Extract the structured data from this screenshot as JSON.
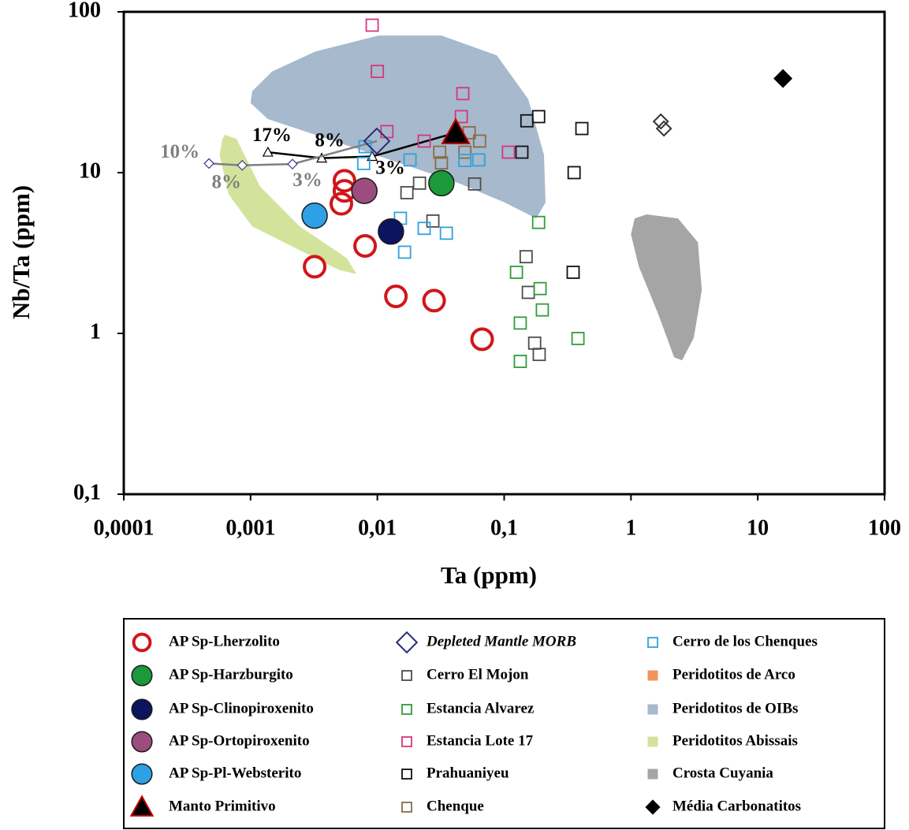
{
  "chart_data": {
    "type": "scatter",
    "xlabel": "Ta (ppm)",
    "ylabel": "Nb/Ta (ppm)",
    "xscale": "log",
    "yscale": "log",
    "xlim": [
      0.0001,
      100
    ],
    "ylim": [
      0.1,
      100
    ],
    "xticks": [
      {
        "value": 0.0001,
        "label": "0,0001"
      },
      {
        "value": 0.001,
        "label": "0,001"
      },
      {
        "value": 0.01,
        "label": "0,01"
      },
      {
        "value": 0.1,
        "label": "0,1"
      },
      1,
      10,
      100
    ],
    "yticks": [
      {
        "value": 0.1,
        "label": "0,1"
      },
      1,
      10,
      100
    ],
    "series": [
      {
        "name": "AP Sp-Lherzolito",
        "marker": "open-circle",
        "color": "#d0161b",
        "x": [
          0.0055,
          0.0055,
          0.0052,
          0.0032,
          0.008,
          0.014,
          0.028,
          0.067
        ],
        "values": [
          8.9,
          7.7,
          6.4,
          2.6,
          3.5,
          1.7,
          1.6,
          0.92
        ]
      },
      {
        "name": "AP Sp-Harzburgito",
        "marker": "circle",
        "color": "#1a9a3a",
        "edgecolor": "#1a1a1a",
        "x": [
          0.032
        ],
        "values": [
          8.6
        ]
      },
      {
        "name": "AP Sp-Clinopiroxenito",
        "marker": "circle",
        "color": "#0c1460",
        "edgecolor": "#1a1a1a",
        "x": [
          0.0128
        ],
        "values": [
          4.3
        ]
      },
      {
        "name": "AP Sp-Ortopiroxenito",
        "marker": "circle",
        "color": "#9c4c7e",
        "edgecolor": "#1a1a1a",
        "x": [
          0.0079
        ],
        "values": [
          7.7
        ]
      },
      {
        "name": "AP Sp-Pl-Websterito",
        "marker": "circle",
        "color": "#2ea0e6",
        "edgecolor": "#1a1a1a",
        "x": [
          0.0032
        ],
        "values": [
          5.4
        ]
      },
      {
        "name": "Manto Primitivo",
        "marker": "triangle",
        "color": "#000000",
        "edgecolor": "#c00000",
        "x": [
          0.0415
        ],
        "values": [
          17.7
        ]
      },
      {
        "name": "Depleted Mantle MORB",
        "italic": true,
        "marker": "open-diamond",
        "color": "#2b2b7a",
        "x": [
          0.0099
        ],
        "values": [
          15.7
        ]
      },
      {
        "name": "Cerro El Mojon",
        "marker": "open-square",
        "color": "#4d4d4d",
        "x": [
          0.0171,
          0.0274,
          0.0585,
          0.149,
          0.155,
          0.174,
          0.189,
          0.0215
        ],
        "values": [
          7.5,
          5.0,
          8.5,
          3.0,
          1.8,
          0.87,
          0.74,
          8.6
        ]
      },
      {
        "name": "Estancia Alvarez",
        "marker": "open-square",
        "color": "#2f9d3a",
        "x": [
          0.187,
          0.125,
          0.192,
          0.2,
          0.134,
          0.382,
          0.134
        ],
        "values": [
          4.9,
          2.4,
          1.9,
          1.4,
          1.16,
          0.93,
          0.67
        ]
      },
      {
        "name": "Estancia Lote 17",
        "marker": "open-square",
        "color": "#d6357f",
        "x": [
          0.0091,
          0.01,
          0.0119,
          0.0234,
          0.0472,
          0.0459,
          0.108
        ],
        "values": [
          82.6,
          42.6,
          18,
          15.7,
          31,
          22.3,
          13.4
        ]
      },
      {
        "name": "Prahuaniyeu",
        "marker": "open-square",
        "color": "#111111",
        "x": [
          0.151,
          0.187,
          0.41,
          0.138,
          0.356,
          0.35
        ],
        "values": [
          21,
          22.3,
          18.8,
          13.4,
          10,
          2.4
        ]
      },
      {
        "name": "Chenque",
        "marker": "open-square",
        "color": "#8b6b4a",
        "x": [
          0.031,
          0.049,
          0.064,
          0.032,
          0.053
        ],
        "values": [
          13.4,
          13.4,
          15.7,
          11.5,
          17.7
        ]
      },
      {
        "name": "Cerro de los Chenques",
        "marker": "open-square",
        "color": "#2ea3dc",
        "x": [
          0.008,
          0.0078,
          0.0181,
          0.0152,
          0.0234,
          0.035,
          0.0164,
          0.063,
          0.049
        ],
        "values": [
          14.5,
          11.4,
          12,
          5.2,
          4.5,
          4.2,
          3.2,
          12,
          11.9
        ]
      },
      {
        "name": "Peridotitos de Arco",
        "marker": "field",
        "color": "#f0935a",
        "x": [],
        "values": []
      },
      {
        "name": "Peridotitos de OIBs",
        "marker": "field",
        "color": "#a7b9cc",
        "x": [
          0.00103,
          0.00148,
          0.00324,
          0.0102,
          0.0321,
          0.0875,
          0.155,
          0.206,
          0.212,
          0.179,
          0.101,
          0.0427,
          0.0181,
          0.00766,
          0.00324,
          0.00137,
          0.001
        ],
        "values": [
          32.1,
          42.6,
          56.6,
          71.2,
          71.2,
          53.6,
          28.6,
          12.9,
          6.52,
          5.19,
          6.52,
          8.67,
          10.9,
          13.7,
          17.2,
          21.5,
          27.1
        ]
      },
      {
        "name": "Peridotitos Abissais",
        "marker": "field",
        "color": "#d4e39c",
        "x": [
          0.000625,
          0.000775,
          0.00119,
          0.00244,
          0.00575,
          0.00684,
          0.00499,
          0.00244,
          0.00103,
          0.000672,
          0.00057,
          0.0006
        ],
        "values": [
          17.2,
          16.2,
          8.18,
          4.63,
          2.94,
          2.34,
          2.48,
          3.29,
          4.63,
          7.31,
          12.9,
          16.2
        ]
      },
      {
        "name": "Crosta Cuyania",
        "marker": "field",
        "color": "#a5a5a5",
        "x": [
          1.33,
          2.35,
          3.37,
          3.62,
          3.13,
          2.53,
          2.19,
          1.64,
          1.15,
          1.0,
          1.07
        ],
        "values": [
          5.5,
          5.19,
          3.69,
          1.86,
          0.94,
          0.68,
          0.71,
          1.32,
          2.62,
          4.13,
          5.19
        ]
      },
      {
        "name": "Média Carbonatitos",
        "marker": "filled-diamond",
        "color": "#000000",
        "x": [
          15.8
        ],
        "values": [
          38.5
        ]
      },
      {
        "marker": "open-diamond",
        "color": "#333333",
        "x": [
          1.72,
          1.82
        ],
        "values": [
          20.8,
          18.8
        ]
      },
      {
        "marker": "curve-triangle",
        "color": "#000000",
        "x": [
          0.00137,
          0.00364,
          0.0091,
          0.0415
        ],
        "values": [
          13.4,
          12.3,
          12.6,
          17.7
        ],
        "labels": [
          "17%",
          "8%",
          "3%",
          null
        ]
      },
      {
        "marker": "curve-diamond",
        "color": "#808080",
        "x": [
          0.00047,
          0.00086,
          0.00214,
          0.0099
        ],
        "values": [
          11.4,
          11.1,
          11.3,
          15.7
        ],
        "labels": [
          "10%",
          "8%",
          "3%",
          null
        ]
      }
    ]
  }
}
